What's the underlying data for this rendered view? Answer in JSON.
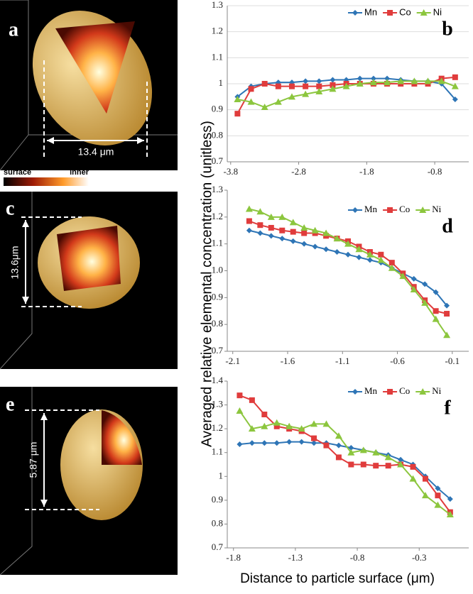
{
  "chart_data": [
    {
      "type": "line",
      "annotation": "b",
      "legend_font": "sans",
      "grid": true,
      "x": [
        -3.7,
        -3.5,
        -3.3,
        -3.1,
        -2.9,
        -2.7,
        -2.5,
        -2.3,
        -2.1,
        -1.9,
        -1.7,
        -1.5,
        -1.3,
        -1.1,
        -0.9,
        -0.7,
        -0.5
      ],
      "xlim": [
        -3.85,
        -0.3
      ],
      "xticks": [
        -3.8,
        -2.8,
        -1.8,
        -0.8
      ],
      "ylim": [
        0.7,
        1.3
      ],
      "yticks": [
        0.7,
        0.8,
        0.9,
        1,
        1.1,
        1.2,
        1.3
      ],
      "series": [
        {
          "name": "Mn",
          "color": "#2e75b6",
          "marker": "diamond",
          "values": [
            0.95,
            0.99,
            1.0,
            1.005,
            1.005,
            1.01,
            1.01,
            1.015,
            1.015,
            1.02,
            1.02,
            1.02,
            1.015,
            1.01,
            1.01,
            1.0,
            0.94
          ]
        },
        {
          "name": "Co",
          "color": "#e03c3c",
          "marker": "square",
          "values": [
            0.885,
            0.98,
            1.0,
            0.99,
            0.99,
            0.99,
            0.99,
            0.995,
            1.0,
            1.0,
            1.0,
            1.0,
            1.0,
            1.0,
            1.0,
            1.02,
            1.025
          ]
        },
        {
          "name": "Ni",
          "color": "#8cc63e",
          "marker": "triangle",
          "values": [
            0.94,
            0.93,
            0.91,
            0.93,
            0.95,
            0.96,
            0.97,
            0.98,
            0.99,
            1.0,
            1.005,
            1.005,
            1.01,
            1.01,
            1.01,
            1.01,
            0.99
          ]
        }
      ]
    },
    {
      "type": "line",
      "annotation": "d",
      "legend_font": "serif",
      "grid": false,
      "x": [
        -1.95,
        -1.85,
        -1.75,
        -1.65,
        -1.55,
        -1.45,
        -1.35,
        -1.25,
        -1.15,
        -1.05,
        -0.95,
        -0.85,
        -0.75,
        -0.65,
        -0.55,
        -0.45,
        -0.35,
        -0.25,
        -0.15
      ],
      "xlim": [
        -2.15,
        0.05
      ],
      "xticks": [
        -2.1,
        -1.6,
        -1.1,
        -0.6,
        -0.1
      ],
      "ylim": [
        0.7,
        1.3
      ],
      "yticks": [
        0.7,
        0.8,
        0.9,
        {
          "value": 1,
          "label": "1.0"
        },
        1.1,
        1.2,
        1.3
      ],
      "series": [
        {
          "name": "Mn",
          "color": "#2e75b6",
          "marker": "diamond",
          "values": [
            1.15,
            1.14,
            1.13,
            1.12,
            1.11,
            1.1,
            1.09,
            1.08,
            1.07,
            1.06,
            1.05,
            1.04,
            1.03,
            1.01,
            0.99,
            0.97,
            0.95,
            0.92,
            0.87
          ]
        },
        {
          "name": "Co",
          "color": "#e03c3c",
          "marker": "square",
          "values": [
            1.185,
            1.17,
            1.16,
            1.15,
            1.145,
            1.14,
            1.14,
            1.13,
            1.12,
            1.11,
            1.09,
            1.07,
            1.06,
            1.03,
            0.99,
            0.94,
            0.89,
            0.85,
            0.84
          ]
        },
        {
          "name": "Ni",
          "color": "#8cc63e",
          "marker": "triangle",
          "values": [
            1.23,
            1.22,
            1.2,
            1.2,
            1.18,
            1.16,
            1.15,
            1.14,
            1.12,
            1.1,
            1.08,
            1.06,
            1.04,
            1.01,
            0.98,
            0.93,
            0.88,
            0.82,
            0.76
          ]
        }
      ]
    },
    {
      "type": "line",
      "annotation": "f",
      "legend_font": "serif",
      "grid": false,
      "x": [
        -1.75,
        -1.65,
        -1.55,
        -1.45,
        -1.35,
        -1.25,
        -1.15,
        -1.05,
        -0.95,
        -0.85,
        -0.75,
        -0.65,
        -0.55,
        -0.45,
        -0.35,
        -0.25,
        -0.15,
        -0.05
      ],
      "xlim": [
        -1.85,
        0.1
      ],
      "xticks": [
        -1.8,
        -1.3,
        -0.8,
        -0.3
      ],
      "ylim": [
        0.7,
        1.4
      ],
      "yticks": [
        0.7,
        0.8,
        0.9,
        1,
        1.1,
        1.2,
        1.3,
        1.4
      ],
      "series": [
        {
          "name": "Mn",
          "color": "#2e75b6",
          "marker": "diamond",
          "values": [
            1.135,
            1.14,
            1.14,
            1.14,
            1.145,
            1.145,
            1.14,
            1.14,
            1.13,
            1.12,
            1.11,
            1.1,
            1.09,
            1.07,
            1.05,
            1.0,
            0.95,
            0.905
          ]
        },
        {
          "name": "Co",
          "color": "#e03c3c",
          "marker": "square",
          "values": [
            1.34,
            1.32,
            1.26,
            1.21,
            1.2,
            1.19,
            1.16,
            1.13,
            1.08,
            1.05,
            1.05,
            1.045,
            1.045,
            1.05,
            1.04,
            0.99,
            0.92,
            0.85
          ]
        },
        {
          "name": "Ni",
          "color": "#8cc63e",
          "marker": "triangle",
          "values": [
            1.275,
            1.2,
            1.21,
            1.225,
            1.21,
            1.2,
            1.22,
            1.22,
            1.17,
            1.1,
            1.11,
            1.1,
            1.08,
            1.05,
            0.99,
            0.92,
            0.88,
            0.84
          ]
        }
      ]
    }
  ],
  "ylabel": "Averaged relative elemental concentration (unitless)",
  "xlabel": "Distance to particle surface (μm)",
  "colorbar": {
    "low": "surface",
    "high": "inner"
  },
  "images": [
    {
      "label": "a",
      "scale": "13.4 μm"
    },
    {
      "label": "c",
      "scale": "13.6μm"
    },
    {
      "label": "e",
      "scale": "5.87 μm"
    }
  ]
}
